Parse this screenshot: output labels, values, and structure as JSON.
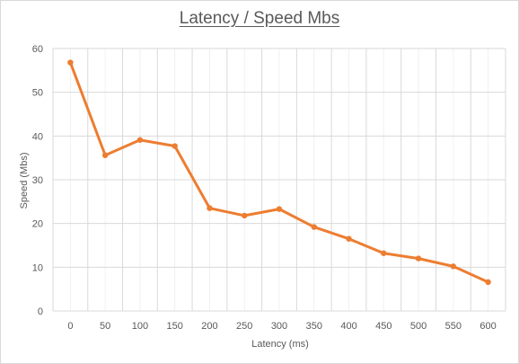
{
  "chart_data": {
    "type": "line",
    "title": "Latency / Speed Mbs",
    "xlabel": "Latency (ms)",
    "ylabel": "Speed (Mbs)",
    "x": [
      0,
      50,
      100,
      150,
      200,
      250,
      300,
      350,
      400,
      450,
      500,
      550,
      600
    ],
    "series": [
      {
        "values": [
          56.8,
          35.6,
          39.1,
          37.7,
          23.5,
          21.8,
          23.3,
          19.2,
          16.5,
          13.2,
          12.0,
          10.2,
          6.6
        ]
      }
    ],
    "ylim": [
      0,
      60
    ],
    "yticks": [
      0,
      10,
      20,
      30,
      40,
      50,
      60
    ],
    "grid": true,
    "line_color": "#ed7d31",
    "grid_color": "#d9d9d9",
    "minor_grid_color": "#f0f0f0"
  }
}
